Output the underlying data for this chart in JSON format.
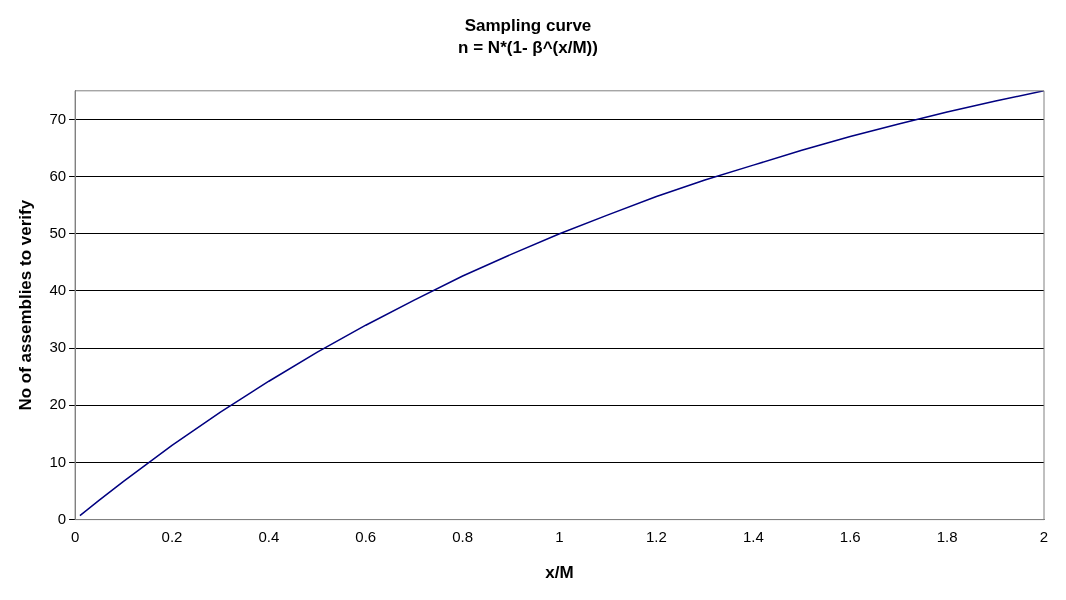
{
  "chart_data": {
    "type": "line",
    "title": "Sampling curve",
    "subtitle": "n = N*(1- β^(x/M))",
    "xlabel": "x/M",
    "ylabel": "No of assemblies to verify",
    "series": [
      {
        "color": "#000080",
        "x": [
          0.01,
          0.05,
          0.1,
          0.2,
          0.3,
          0.4,
          0.5,
          0.6,
          0.7,
          0.8,
          0.9,
          1.0,
          1.1,
          1.2,
          1.3,
          1.4,
          1.5,
          1.6,
          1.7,
          1.8,
          1.9,
          2.0
        ],
        "values": [
          0.7,
          3.4,
          6.7,
          13,
          18.8,
          24.2,
          29.3,
          34,
          38.4,
          42.6,
          46.4,
          50,
          53.3,
          56.5,
          59.4,
          62,
          64.6,
          67,
          69.2,
          71.3,
          73.2,
          75
        ]
      }
    ],
    "xlim": [
      0,
      2
    ],
    "xticks": [
      0,
      0.2,
      0.4,
      0.6,
      0.8,
      1,
      1.2,
      1.4,
      1.6,
      1.8,
      2
    ],
    "ylim": [
      0,
      75
    ],
    "yticks": [
      0,
      10,
      20,
      30,
      40,
      50,
      60,
      70
    ],
    "grid": "y",
    "legend": false,
    "marker": "none",
    "line_style": "solid"
  }
}
